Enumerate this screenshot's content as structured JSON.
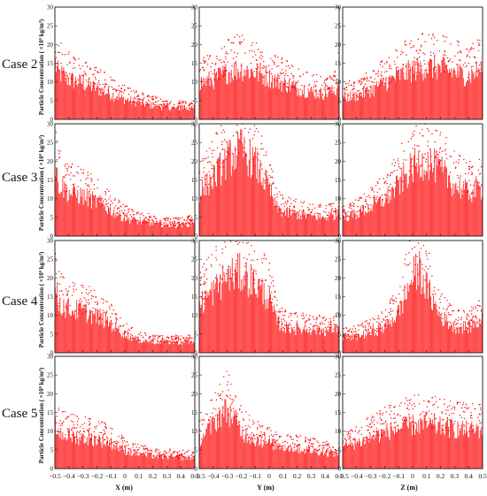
{
  "figure": {
    "rows": [
      "Case 2",
      "Case 3",
      "Case 4",
      "Case 5"
    ],
    "ylabel": "Particle Concentration ( ×10⁹ kg/m³)",
    "xlabels": [
      "X (m)",
      "Y (m)",
      "Z (m)"
    ],
    "x_tick_labels": [
      "−0.5",
      "−0.4",
      "−0.3",
      "−0.2",
      "−0.1",
      "0",
      "0.1",
      "0.2",
      "0.3",
      "0.4",
      "0.5"
    ],
    "y_tick_labels": [
      "0",
      "5",
      "10",
      "15",
      "20",
      "25",
      "30"
    ],
    "bar_color": "#ff0000",
    "frame_color": "#222222"
  },
  "chart_data": [
    {
      "case": "Case 2",
      "axis": "X",
      "type": "bar",
      "xlim": [
        -0.5,
        0.5
      ],
      "ylim": [
        0,
        30
      ],
      "mean_profile": {
        "x": [
          -0.5,
          -0.48,
          -0.4,
          -0.3,
          -0.2,
          -0.1,
          0,
          0.1,
          0.2,
          0.3,
          0.4,
          0.5
        ],
        "y": [
          16,
          13,
          11,
          10,
          8.5,
          7,
          5.5,
          4.5,
          3.8,
          3.2,
          3,
          3
        ]
      }
    },
    {
      "case": "Case 2",
      "axis": "Y",
      "type": "bar",
      "xlim": [
        -0.5,
        0.5
      ],
      "ylim": [
        0,
        30
      ],
      "mean_profile": {
        "x": [
          -0.5,
          -0.4,
          -0.3,
          -0.2,
          -0.1,
          0,
          0.1,
          0.2,
          0.3,
          0.4,
          0.48,
          0.5
        ],
        "y": [
          10,
          11,
          13,
          14,
          13,
          11.5,
          10,
          8.5,
          7.5,
          7,
          8,
          13
        ]
      }
    },
    {
      "case": "Case 2",
      "axis": "Z",
      "type": "bar",
      "xlim": [
        -0.5,
        0.5
      ],
      "ylim": [
        0,
        30
      ],
      "mean_profile": {
        "x": [
          -0.5,
          -0.4,
          -0.3,
          -0.2,
          -0.1,
          0,
          0.1,
          0.2,
          0.3,
          0.4,
          0.5
        ],
        "y": [
          6,
          6.5,
          8,
          10,
          12,
          13.5,
          14.5,
          14,
          13,
          12,
          14
        ]
      }
    },
    {
      "case": "Case 3",
      "axis": "X",
      "type": "bar",
      "xlim": [
        -0.5,
        0.5
      ],
      "ylim": [
        0,
        30
      ],
      "mean_profile": {
        "x": [
          -0.5,
          -0.48,
          -0.4,
          -0.3,
          -0.2,
          -0.1,
          0,
          0.1,
          0.2,
          0.3,
          0.4,
          0.5
        ],
        "y": [
          22,
          15,
          12,
          11,
          9.5,
          7,
          5,
          4,
          3.5,
          3,
          3,
          3.5
        ]
      }
    },
    {
      "case": "Case 3",
      "axis": "Y",
      "type": "bar",
      "xlim": [
        -0.5,
        0.5
      ],
      "ylim": [
        0,
        30
      ],
      "mean_profile": {
        "x": [
          -0.5,
          -0.4,
          -0.3,
          -0.2,
          -0.1,
          0,
          0.05,
          0.1,
          0.2,
          0.3,
          0.4,
          0.48,
          0.5
        ],
        "y": [
          12,
          16,
          21,
          24,
          20,
          13,
          8,
          6.5,
          6,
          5.5,
          5,
          6,
          9
        ]
      }
    },
    {
      "case": "Case 3",
      "axis": "Z",
      "type": "bar",
      "xlim": [
        -0.5,
        0.5
      ],
      "ylim": [
        0,
        30
      ],
      "mean_profile": {
        "x": [
          -0.5,
          -0.4,
          -0.3,
          -0.2,
          -0.1,
          0,
          0.1,
          0.2,
          0.3,
          0.4,
          0.5
        ],
        "y": [
          5,
          6,
          8,
          10,
          14,
          19,
          21,
          18,
          14,
          12,
          13
        ]
      }
    },
    {
      "case": "Case 4",
      "axis": "X",
      "type": "bar",
      "xlim": [
        -0.5,
        0.5
      ],
      "ylim": [
        0,
        30
      ],
      "mean_profile": {
        "x": [
          -0.5,
          -0.48,
          -0.4,
          -0.3,
          -0.2,
          -0.1,
          0,
          0.1,
          0.2,
          0.3,
          0.4,
          0.5
        ],
        "y": [
          20,
          14,
          12,
          11.5,
          10,
          8,
          5,
          3.5,
          3,
          3,
          2.8,
          3
        ]
      }
    },
    {
      "case": "Case 4",
      "axis": "Y",
      "type": "bar",
      "xlim": [
        -0.5,
        0.5
      ],
      "ylim": [
        0,
        30
      ],
      "mean_profile": {
        "x": [
          -0.5,
          -0.4,
          -0.3,
          -0.2,
          -0.1,
          0,
          0.05,
          0.1,
          0.2,
          0.3,
          0.4,
          0.48,
          0.5
        ],
        "y": [
          13,
          17,
          21,
          22,
          19,
          15,
          9,
          7,
          6.5,
          6.5,
          6,
          6.5,
          9
        ]
      }
    },
    {
      "case": "Case 4",
      "axis": "Z",
      "type": "bar",
      "xlim": [
        -0.5,
        0.5
      ],
      "ylim": [
        0,
        30
      ],
      "mean_profile": {
        "x": [
          -0.5,
          -0.4,
          -0.3,
          -0.2,
          -0.1,
          0,
          0.05,
          0.1,
          0.2,
          0.3,
          0.4,
          0.5
        ],
        "y": [
          4,
          4.5,
          5.5,
          7,
          11,
          21,
          23,
          18,
          10,
          7,
          7,
          9
        ]
      }
    },
    {
      "case": "Case 5",
      "axis": "X",
      "type": "bar",
      "xlim": [
        -0.5,
        0.5
      ],
      "ylim": [
        0,
        30
      ],
      "mean_profile": {
        "x": [
          -0.5,
          -0.48,
          -0.4,
          -0.3,
          -0.2,
          -0.1,
          0,
          0.1,
          0.2,
          0.3,
          0.4,
          0.5
        ],
        "y": [
          12,
          10,
          9,
          8.5,
          8,
          7,
          5,
          4,
          3.5,
          3.2,
          3,
          3
        ]
      }
    },
    {
      "case": "Case 5",
      "axis": "Y",
      "type": "bar",
      "xlim": [
        -0.5,
        0.5
      ],
      "ylim": [
        0,
        30
      ],
      "mean_profile": {
        "x": [
          -0.5,
          -0.45,
          -0.4,
          -0.35,
          -0.3,
          -0.25,
          -0.2,
          -0.1,
          0,
          0.1,
          0.2,
          0.3,
          0.4,
          0.48,
          0.5
        ],
        "y": [
          8,
          10,
          12,
          15,
          16,
          14,
          10,
          8,
          7,
          6,
          5.5,
          5,
          4.5,
          4,
          4
        ]
      }
    },
    {
      "case": "Case 5",
      "axis": "Z",
      "type": "bar",
      "xlim": [
        -0.5,
        0.5
      ],
      "ylim": [
        0,
        30
      ],
      "mean_profile": {
        "x": [
          -0.5,
          -0.4,
          -0.3,
          -0.2,
          -0.1,
          0,
          0.1,
          0.2,
          0.3,
          0.4,
          0.5
        ],
        "y": [
          6,
          7,
          8.5,
          10,
          11,
          12,
          12,
          11.5,
          11,
          10.5,
          11
        ]
      }
    }
  ]
}
